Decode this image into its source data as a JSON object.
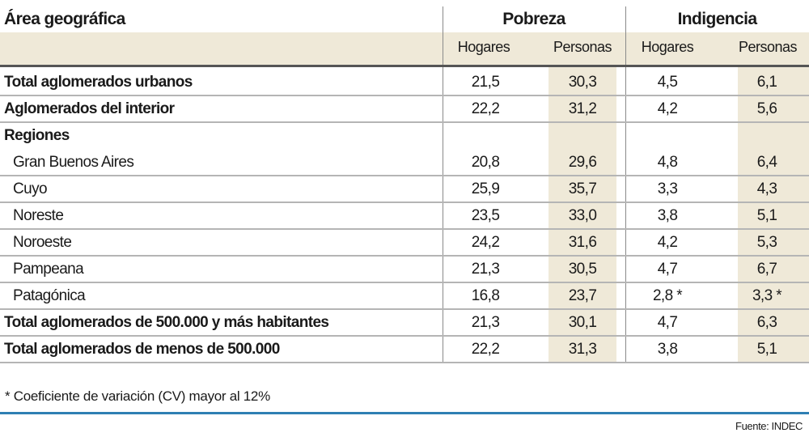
{
  "table": {
    "header": {
      "area": "Área geográfica",
      "pobreza": "Pobreza",
      "indigencia": "Indigencia"
    },
    "subheaders": [
      "Hogares",
      "Personas",
      "Hogares",
      "Personas"
    ],
    "rows": [
      {
        "label": "Total aglomerados urbanos",
        "style": "bold",
        "values": [
          "21,5",
          "30,3",
          "4,5",
          "6,1"
        ]
      },
      {
        "label": "Aglomerados del interior",
        "style": "bold",
        "values": [
          "22,2",
          "31,2",
          "4,2",
          "5,6"
        ]
      },
      {
        "label": "Regiones",
        "style": "bold",
        "values": [
          "",
          "",
          "",
          ""
        ]
      },
      {
        "label": "Gran Buenos Aires",
        "style": "indent",
        "values": [
          "20,8",
          "29,6",
          "4,8",
          "6,4"
        ]
      },
      {
        "label": "Cuyo",
        "style": "indent",
        "values": [
          "25,9",
          "35,7",
          "3,3",
          "4,3"
        ]
      },
      {
        "label": "Noreste",
        "style": "indent",
        "values": [
          "23,5",
          "33,0",
          "3,8",
          "5,1"
        ]
      },
      {
        "label": "Noroeste",
        "style": "indent",
        "values": [
          "24,2",
          "31,6",
          "4,2",
          "5,3"
        ]
      },
      {
        "label": "Pampeana",
        "style": "indent",
        "values": [
          "21,3",
          "30,5",
          "4,7",
          "6,7"
        ]
      },
      {
        "label": "Patagónica",
        "style": "indent",
        "values": [
          "16,8",
          "23,7",
          "2,8 *",
          "3,3 *"
        ]
      },
      {
        "label": "Total aglomerados de 500.000 y más habitantes",
        "style": "bold",
        "values": [
          "21,3",
          "30,1",
          "4,7",
          "6,3"
        ]
      },
      {
        "label": "Total aglomerados de menos de 500.000",
        "style": "bold",
        "values": [
          "22,2",
          "31,3",
          "3,8",
          "5,1"
        ]
      }
    ],
    "footnote": "* Coeficiente de variación (CV) mayor al 12%",
    "source": "Fuente: INDEC"
  },
  "chart_data": {
    "type": "table",
    "columns": [
      "Área geográfica",
      "Pobreza - Hogares",
      "Pobreza - Personas",
      "Indigencia - Hogares",
      "Indigencia - Personas"
    ],
    "rows": [
      [
        "Total aglomerados urbanos",
        21.5,
        30.3,
        4.5,
        6.1
      ],
      [
        "Aglomerados del interior",
        22.2,
        31.2,
        4.2,
        5.6
      ],
      [
        "Gran Buenos Aires",
        20.8,
        29.6,
        4.8,
        6.4
      ],
      [
        "Cuyo",
        25.9,
        35.7,
        3.3,
        4.3
      ],
      [
        "Noreste",
        23.5,
        33.0,
        3.8,
        5.1
      ],
      [
        "Noroeste",
        24.2,
        31.6,
        4.2,
        5.3
      ],
      [
        "Pampeana",
        21.3,
        30.5,
        4.7,
        6.7
      ],
      [
        "Patagónica",
        16.8,
        23.7,
        2.8,
        3.3
      ],
      [
        "Total aglomerados de 500.000 y más habitantes",
        21.3,
        30.1,
        4.7,
        6.3
      ],
      [
        "Total aglomerados de menos de 500.000",
        22.2,
        31.3,
        3.8,
        5.1
      ]
    ],
    "colors": {
      "highlight": "#efe9d8",
      "rule": "#2f7fb3"
    }
  }
}
